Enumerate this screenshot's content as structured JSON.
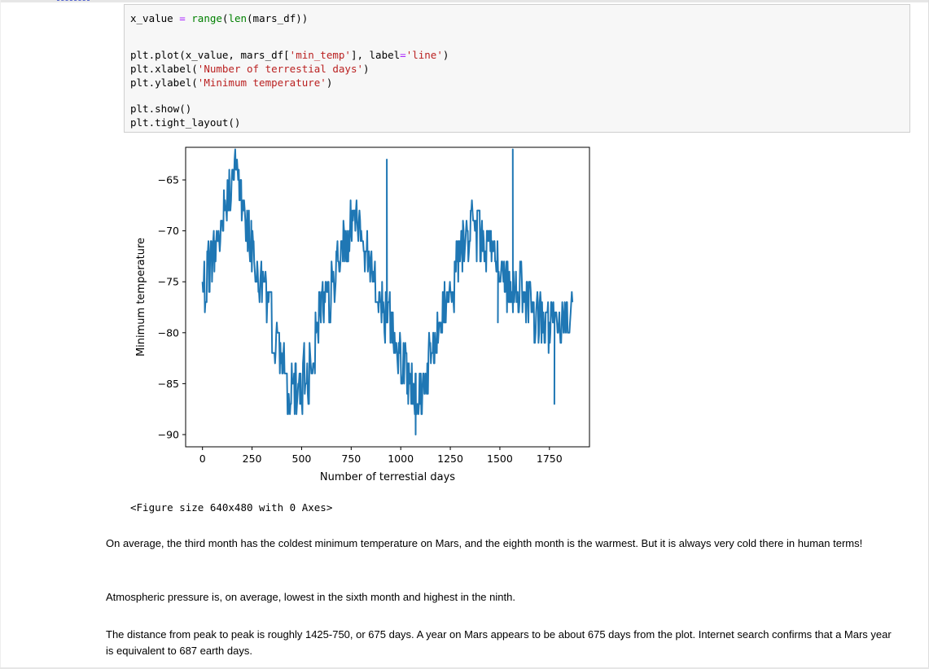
{
  "code_cell": {
    "lines": [
      [
        {
          "t": "x_value ",
          "c": ""
        },
        {
          "t": "=",
          "c": "op"
        },
        {
          "t": " ",
          "c": ""
        },
        {
          "t": "range",
          "c": "fn"
        },
        {
          "t": "(",
          "c": ""
        },
        {
          "t": "len",
          "c": "fn"
        },
        {
          "t": "(mars_df))",
          "c": ""
        }
      ],
      [
        {
          "t": "plt.plot(x_value, mars_df[",
          "c": ""
        },
        {
          "t": "'min_temp'",
          "c": "str"
        },
        {
          "t": "], label",
          "c": ""
        },
        {
          "t": "=",
          "c": "op"
        },
        {
          "t": "'line'",
          "c": "str"
        },
        {
          "t": ")",
          "c": ""
        }
      ],
      [
        {
          "t": "plt.xlabel(",
          "c": ""
        },
        {
          "t": "'Number of terrestial days'",
          "c": "str"
        },
        {
          "t": ")",
          "c": ""
        }
      ],
      [
        {
          "t": "plt.ylabel(",
          "c": ""
        },
        {
          "t": "'Minimum temperature'",
          "c": "str"
        },
        {
          "t": ")",
          "c": ""
        }
      ],
      [
        {
          "t": "plt.show()",
          "c": ""
        }
      ],
      [
        {
          "t": "plt.tight_layout()",
          "c": ""
        }
      ]
    ]
  },
  "output": {
    "figure_size_text": "<Figure size 640x480 with 0 Axes>"
  },
  "chart_data": {
    "type": "line",
    "xlabel": "Number of terrestial days",
    "ylabel": "Minimum temperature",
    "xlim": [
      -85,
      1952
    ],
    "ylim": [
      -91.2,
      -61.8
    ],
    "x_ticks": [
      0,
      250,
      500,
      750,
      1000,
      1250,
      1500,
      1750
    ],
    "y_ticks": [
      -65,
      -70,
      -75,
      -80,
      -85,
      -90
    ],
    "color": "#1f77b4",
    "series": [
      {
        "label": "line",
        "x_start": 0,
        "x_end": 1866,
        "anchor_x": [
          0,
          60,
          130,
          170,
          220,
          290,
          360,
          410,
          470,
          520,
          600,
          660,
          710,
          760,
          830,
          880,
          940,
          1000,
          1050,
          1100,
          1160,
          1220,
          1290,
          1360,
          1420,
          1480,
          1540,
          1600,
          1660,
          1720,
          1780,
          1866
        ],
        "anchor_y": [
          -76,
          -72,
          -66,
          -64,
          -69,
          -74,
          -80,
          -85,
          -86,
          -84,
          -78,
          -75,
          -71,
          -69,
          -72,
          -76,
          -79,
          -82,
          -85,
          -86,
          -82,
          -77,
          -73,
          -70,
          -71,
          -73,
          -75,
          -76,
          -78,
          -79,
          -80,
          -77
        ],
        "spikes": [
          {
            "x": 930,
            "y": -63
          },
          {
            "x": 1075,
            "y": -90
          },
          {
            "x": 1565,
            "y": -62
          },
          {
            "x": 1775,
            "y": -87
          },
          {
            "x": 1490,
            "y": -79
          }
        ]
      }
    ]
  },
  "markdown": {
    "paragraph_1": "On average, the third month has the coldest minimum temperature on Mars, and the eighth month is the warmest. But it is always very cold there in human terms!",
    "paragraph_2": "Atmospheric pressure is, on average, lowest in the sixth month and highest in the ninth.",
    "paragraph_3": "The distance from peak to peak is roughly 1425-750, or 675 days. A year on Mars appears to be about 675 days from the plot. Internet search confirms that a Mars year is equivalent to 687 earth days."
  }
}
